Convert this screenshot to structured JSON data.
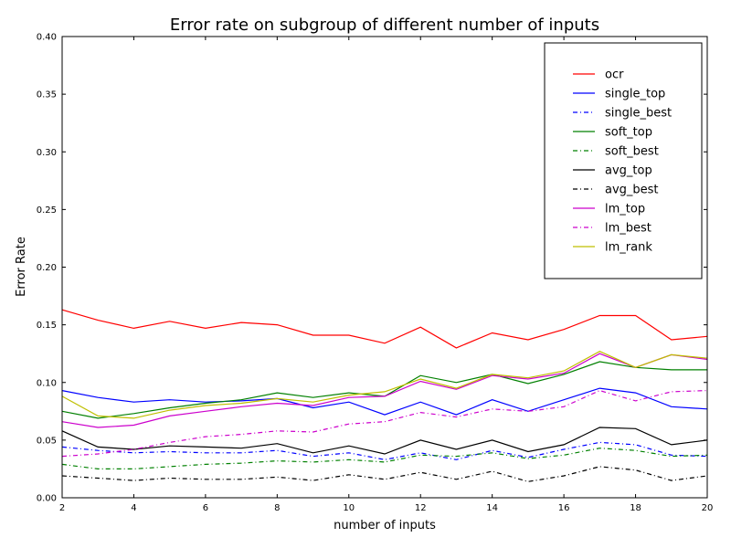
{
  "chart_data": {
    "type": "line",
    "title": "Error rate on subgroup of different number of inputs",
    "xlabel": "number of inputs",
    "ylabel": "Error Rate",
    "xlim": [
      2,
      20
    ],
    "ylim": [
      0.0,
      0.4
    ],
    "x_ticks": [
      "2",
      "4",
      "6",
      "8",
      "10",
      "12",
      "14",
      "16",
      "18",
      "20"
    ],
    "y_ticks": [
      "0.00",
      "0.05",
      "0.10",
      "0.15",
      "0.20",
      "0.25",
      "0.30",
      "0.35",
      "0.40"
    ],
    "grid": false,
    "legend_position": "top-right",
    "x": [
      2,
      3,
      4,
      5,
      6,
      7,
      8,
      9,
      10,
      11,
      12,
      13,
      14,
      15,
      16,
      17,
      18,
      19,
      20
    ],
    "series": [
      {
        "name": "ocr",
        "color": "#ff0000",
        "dash": "solid",
        "values": [
          0.163,
          0.154,
          0.147,
          0.153,
          0.147,
          0.152,
          0.15,
          0.141,
          0.141,
          0.134,
          0.148,
          0.13,
          0.143,
          0.137,
          0.146,
          0.158,
          0.158,
          0.137,
          0.14
        ]
      },
      {
        "name": "single_top",
        "color": "#0000ff",
        "dash": "solid",
        "values": [
          0.093,
          0.087,
          0.083,
          0.085,
          0.083,
          0.084,
          0.086,
          0.078,
          0.083,
          0.072,
          0.083,
          0.072,
          0.085,
          0.075,
          0.085,
          0.095,
          0.091,
          0.079,
          0.077
        ]
      },
      {
        "name": "single_best",
        "color": "#0000ff",
        "dash": "dashdot",
        "values": [
          0.044,
          0.041,
          0.039,
          0.04,
          0.039,
          0.039,
          0.041,
          0.036,
          0.039,
          0.033,
          0.039,
          0.033,
          0.041,
          0.035,
          0.042,
          0.048,
          0.046,
          0.037,
          0.036
        ]
      },
      {
        "name": "soft_top",
        "color": "#008000",
        "dash": "solid",
        "values": [
          0.075,
          0.069,
          0.073,
          0.078,
          0.082,
          0.085,
          0.091,
          0.087,
          0.091,
          0.088,
          0.106,
          0.1,
          0.107,
          0.099,
          0.107,
          0.118,
          0.113,
          0.111,
          0.111
        ]
      },
      {
        "name": "soft_best",
        "color": "#008000",
        "dash": "dashdot",
        "values": [
          0.029,
          0.025,
          0.025,
          0.027,
          0.029,
          0.03,
          0.032,
          0.031,
          0.033,
          0.031,
          0.037,
          0.036,
          0.039,
          0.034,
          0.037,
          0.043,
          0.041,
          0.036,
          0.037
        ]
      },
      {
        "name": "avg_top",
        "color": "#000000",
        "dash": "solid",
        "values": [
          0.058,
          0.044,
          0.042,
          0.045,
          0.044,
          0.043,
          0.047,
          0.039,
          0.045,
          0.038,
          0.05,
          0.042,
          0.05,
          0.04,
          0.046,
          0.061,
          0.06,
          0.046,
          0.05
        ]
      },
      {
        "name": "avg_best",
        "color": "#000000",
        "dash": "dashdot",
        "values": [
          0.019,
          0.017,
          0.015,
          0.017,
          0.016,
          0.016,
          0.018,
          0.015,
          0.02,
          0.016,
          0.022,
          0.016,
          0.023,
          0.014,
          0.019,
          0.027,
          0.024,
          0.015,
          0.019
        ]
      },
      {
        "name": "lm_top",
        "color": "#cc00cc",
        "dash": "solid",
        "values": [
          0.066,
          0.061,
          0.063,
          0.071,
          0.075,
          0.079,
          0.082,
          0.08,
          0.087,
          0.088,
          0.101,
          0.094,
          0.106,
          0.103,
          0.108,
          0.125,
          0.113,
          0.124,
          0.12
        ]
      },
      {
        "name": "lm_best",
        "color": "#cc00cc",
        "dash": "dashdot",
        "values": [
          0.036,
          0.038,
          0.042,
          0.048,
          0.053,
          0.055,
          0.058,
          0.057,
          0.064,
          0.066,
          0.074,
          0.07,
          0.077,
          0.075,
          0.079,
          0.093,
          0.084,
          0.092,
          0.093
        ]
      },
      {
        "name": "lm_rank",
        "color": "#bfbf00",
        "dash": "solid",
        "values": [
          0.088,
          0.071,
          0.069,
          0.076,
          0.08,
          0.082,
          0.086,
          0.083,
          0.089,
          0.092,
          0.103,
          0.095,
          0.107,
          0.104,
          0.11,
          0.127,
          0.113,
          0.124,
          0.121
        ]
      }
    ]
  }
}
